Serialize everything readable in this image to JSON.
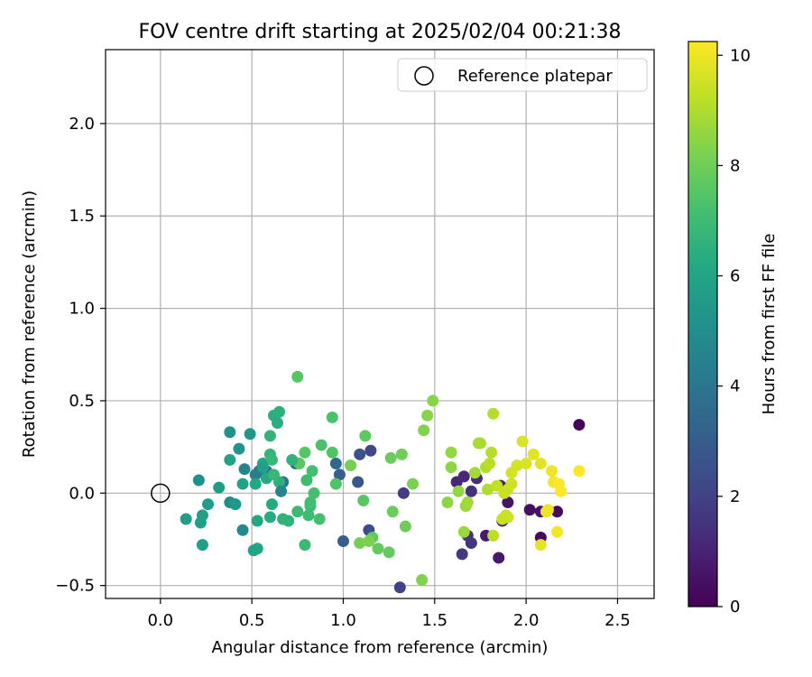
{
  "chart_data": {
    "type": "scatter",
    "title": "FOV centre drift starting at 2025/02/04 00:21:38",
    "xlabel": "Angular distance from reference (arcmin)",
    "ylabel": "Rotation from reference (arcmin)",
    "xlim": [
      -0.3,
      2.7
    ],
    "ylim": [
      -0.57,
      2.4
    ],
    "xticks": [
      "0.0",
      "0.5",
      "1.0",
      "1.5",
      "2.0",
      "2.5"
    ],
    "yticks": [
      "−0.5",
      "0.0",
      "0.5",
      "1.0",
      "1.5",
      "2.0"
    ],
    "grid": true,
    "legend": {
      "placement": "top-right",
      "entries": [
        "Reference platepar"
      ]
    },
    "reference_point": {
      "x": 0.0,
      "y": 0.0,
      "label": "Reference platepar"
    },
    "colorbar": {
      "label": "Hours from first FF file",
      "colormap": "viridis",
      "range": [
        0,
        10.25
      ],
      "ticks": [
        "0",
        "2",
        "4",
        "6",
        "8",
        "10"
      ]
    },
    "series": [
      {
        "points": [
          {
            "x": 2.29,
            "y": 0.37,
            "c": 0.1
          },
          {
            "x": 2.08,
            "y": -0.24,
            "c": 0.2
          },
          {
            "x": 2.17,
            "y": -0.1,
            "c": 0.3
          },
          {
            "x": 2.02,
            "y": -0.09,
            "c": 0.4
          },
          {
            "x": 2.08,
            "y": -0.1,
            "c": 0.5
          },
          {
            "x": 1.9,
            "y": -0.05,
            "c": 0.6
          },
          {
            "x": 1.85,
            "y": -0.35,
            "c": 0.7
          },
          {
            "x": 1.78,
            "y": -0.23,
            "c": 0.8
          },
          {
            "x": 1.87,
            "y": -0.15,
            "c": 0.9
          },
          {
            "x": 1.86,
            "y": 0.04,
            "c": 1.0
          },
          {
            "x": 1.62,
            "y": 0.06,
            "c": 1.1
          },
          {
            "x": 1.66,
            "y": 0.09,
            "c": 1.2
          },
          {
            "x": 1.73,
            "y": 0.08,
            "c": 1.3
          },
          {
            "x": 1.7,
            "y": 0.01,
            "c": 1.4
          },
          {
            "x": 1.68,
            "y": -0.23,
            "c": 1.5
          },
          {
            "x": 1.7,
            "y": -0.27,
            "c": 1.6
          },
          {
            "x": 1.65,
            "y": -0.33,
            "c": 1.7
          },
          {
            "x": 1.33,
            "y": 0.0,
            "c": 1.8
          },
          {
            "x": 1.31,
            "y": -0.51,
            "c": 2.0
          },
          {
            "x": 1.15,
            "y": 0.23,
            "c": 2.2
          },
          {
            "x": 1.14,
            "y": -0.2,
            "c": 2.4
          },
          {
            "x": 1.09,
            "y": 0.21,
            "c": 2.6
          },
          {
            "x": 1.08,
            "y": 0.06,
            "c": 2.8
          },
          {
            "x": 1.0,
            "y": -0.26,
            "c": 3.0
          },
          {
            "x": 0.98,
            "y": 0.1,
            "c": 3.2
          },
          {
            "x": 0.96,
            "y": 0.16,
            "c": 3.4
          },
          {
            "x": 0.74,
            "y": 0.16,
            "c": 3.6
          },
          {
            "x": 0.67,
            "y": 0.06,
            "c": 3.8
          },
          {
            "x": 0.58,
            "y": 0.12,
            "c": 4.0
          },
          {
            "x": 0.54,
            "y": 0.12,
            "c": 4.2
          },
          {
            "x": 0.52,
            "y": 0.1,
            "c": 4.4
          },
          {
            "x": 0.46,
            "y": 0.13,
            "c": 4.6
          },
          {
            "x": 0.45,
            "y": -0.2,
            "c": 4.8
          },
          {
            "x": 0.38,
            "y": -0.05,
            "c": 5.0
          },
          {
            "x": 0.21,
            "y": 0.07,
            "c": 5.1
          },
          {
            "x": 0.38,
            "y": 0.33,
            "c": 5.2
          },
          {
            "x": 0.43,
            "y": 0.24,
            "c": 5.3
          },
          {
            "x": 0.49,
            "y": 0.32,
            "c": 5.4
          },
          {
            "x": 0.41,
            "y": -0.06,
            "c": 5.5
          },
          {
            "x": 0.26,
            "y": -0.06,
            "c": 5.6
          },
          {
            "x": 0.32,
            "y": 0.03,
            "c": 5.6
          },
          {
            "x": 0.14,
            "y": -0.14,
            "c": 5.7
          },
          {
            "x": 0.22,
            "y": -0.16,
            "c": 5.7
          },
          {
            "x": 0.23,
            "y": -0.12,
            "c": 5.8
          },
          {
            "x": 0.23,
            "y": -0.28,
            "c": 5.8
          },
          {
            "x": 0.38,
            "y": 0.18,
            "c": 5.9
          },
          {
            "x": 0.45,
            "y": 0.05,
            "c": 5.9
          },
          {
            "x": 0.51,
            "y": -0.31,
            "c": 6.0
          },
          {
            "x": 0.53,
            "y": -0.3,
            "c": 6.0
          },
          {
            "x": 0.53,
            "y": -0.15,
            "c": 6.1
          },
          {
            "x": 0.52,
            "y": 0.05,
            "c": 6.1
          },
          {
            "x": 0.56,
            "y": 0.16,
            "c": 6.2
          },
          {
            "x": 0.58,
            "y": 0.08,
            "c": 6.2
          },
          {
            "x": 0.6,
            "y": -0.13,
            "c": 6.3
          },
          {
            "x": 0.61,
            "y": -0.06,
            "c": 6.3
          },
          {
            "x": 0.62,
            "y": 0.42,
            "c": 6.4
          },
          {
            "x": 0.64,
            "y": 0.38,
            "c": 6.4
          },
          {
            "x": 0.65,
            "y": 0.44,
            "c": 6.5
          },
          {
            "x": 0.65,
            "y": 0.06,
            "c": 6.5
          },
          {
            "x": 0.67,
            "y": -0.14,
            "c": 6.6
          },
          {
            "x": 0.7,
            "y": -0.15,
            "c": 6.6
          },
          {
            "x": 0.6,
            "y": 0.31,
            "c": 6.7
          },
          {
            "x": 0.6,
            "y": 0.21,
            "c": 6.7
          },
          {
            "x": 0.61,
            "y": 0.18,
            "c": 6.8
          },
          {
            "x": 0.62,
            "y": 0.1,
            "c": 6.8
          },
          {
            "x": 0.75,
            "y": -0.1,
            "c": 6.9
          },
          {
            "x": 0.79,
            "y": -0.28,
            "c": 6.9
          },
          {
            "x": 0.8,
            "y": 0.07,
            "c": 7.0
          },
          {
            "x": 0.81,
            "y": -0.12,
            "c": 7.0
          },
          {
            "x": 0.82,
            "y": -0.07,
            "c": 7.0
          },
          {
            "x": 0.82,
            "y": -0.05,
            "c": 7.1
          },
          {
            "x": 0.83,
            "y": 0.12,
            "c": 7.1
          },
          {
            "x": 0.84,
            "y": 0.0,
            "c": 7.2
          },
          {
            "x": 0.87,
            "y": -0.14,
            "c": 7.2
          },
          {
            "x": 0.88,
            "y": 0.26,
            "c": 7.3
          },
          {
            "x": 0.94,
            "y": 0.41,
            "c": 7.3
          },
          {
            "x": 0.94,
            "y": 0.22,
            "c": 7.4
          },
          {
            "x": 0.96,
            "y": 0.05,
            "c": 7.4
          },
          {
            "x": 0.75,
            "y": 0.63,
            "c": 7.5
          },
          {
            "x": 0.79,
            "y": 0.22,
            "c": 7.5
          },
          {
            "x": 0.76,
            "y": 0.16,
            "c": 7.6
          },
          {
            "x": 1.11,
            "y": -0.04,
            "c": 7.6
          },
          {
            "x": 1.12,
            "y": 0.31,
            "c": 7.7
          },
          {
            "x": 1.16,
            "y": -0.24,
            "c": 7.7
          },
          {
            "x": 1.19,
            "y": -0.3,
            "c": 7.8
          },
          {
            "x": 1.25,
            "y": -0.32,
            "c": 7.8
          },
          {
            "x": 1.26,
            "y": 0.19,
            "c": 7.9
          },
          {
            "x": 1.27,
            "y": -0.1,
            "c": 7.9
          },
          {
            "x": 1.32,
            "y": 0.21,
            "c": 8.0
          },
          {
            "x": 1.34,
            "y": -0.18,
            "c": 8.0
          },
          {
            "x": 1.09,
            "y": -0.27,
            "c": 8.1
          },
          {
            "x": 1.04,
            "y": 0.15,
            "c": 8.1
          },
          {
            "x": 1.14,
            "y": -0.26,
            "c": 8.2
          },
          {
            "x": 1.38,
            "y": 0.05,
            "c": 8.2
          },
          {
            "x": 1.43,
            "y": -0.47,
            "c": 8.3
          },
          {
            "x": 1.44,
            "y": 0.34,
            "c": 8.3
          },
          {
            "x": 1.46,
            "y": 0.42,
            "c": 8.4
          },
          {
            "x": 1.49,
            "y": 0.5,
            "c": 8.4
          },
          {
            "x": 1.57,
            "y": -0.05,
            "c": 8.5
          },
          {
            "x": 1.59,
            "y": 0.14,
            "c": 8.5
          },
          {
            "x": 1.59,
            "y": 0.22,
            "c": 8.6
          },
          {
            "x": 1.63,
            "y": 0.01,
            "c": 8.6
          },
          {
            "x": 1.66,
            "y": -0.21,
            "c": 8.7
          },
          {
            "x": 1.67,
            "y": -0.07,
            "c": 8.7
          },
          {
            "x": 1.68,
            "y": -0.05,
            "c": 8.8
          },
          {
            "x": 1.72,
            "y": 0.11,
            "c": 8.8
          },
          {
            "x": 1.74,
            "y": 0.27,
            "c": 8.9
          },
          {
            "x": 1.75,
            "y": 0.27,
            "c": 8.9
          },
          {
            "x": 1.78,
            "y": 0.14,
            "c": 9.0
          },
          {
            "x": 1.79,
            "y": 0.02,
            "c": 9.0
          },
          {
            "x": 1.81,
            "y": 0.22,
            "c": 9.1
          },
          {
            "x": 1.82,
            "y": 0.43,
            "c": 9.1
          },
          {
            "x": 1.82,
            "y": -0.23,
            "c": 9.2
          },
          {
            "x": 1.8,
            "y": 0.16,
            "c": 9.2
          },
          {
            "x": 1.84,
            "y": 0.04,
            "c": 9.3
          },
          {
            "x": 1.87,
            "y": -0.14,
            "c": 9.4
          },
          {
            "x": 1.89,
            "y": -0.12,
            "c": 9.4
          },
          {
            "x": 1.9,
            "y": 0.02,
            "c": 9.5
          },
          {
            "x": 1.92,
            "y": 0.05,
            "c": 9.5
          },
          {
            "x": 1.92,
            "y": 0.11,
            "c": 9.6
          },
          {
            "x": 1.95,
            "y": 0.15,
            "c": 9.6
          },
          {
            "x": 1.98,
            "y": 0.28,
            "c": 9.7
          },
          {
            "x": 2.0,
            "y": 0.16,
            "c": 9.7
          },
          {
            "x": 2.04,
            "y": 0.21,
            "c": 9.8
          },
          {
            "x": 2.08,
            "y": 0.16,
            "c": 9.8
          },
          {
            "x": 2.08,
            "y": -0.28,
            "c": 9.9
          },
          {
            "x": 2.11,
            "y": -0.1,
            "c": 9.9
          },
          {
            "x": 2.12,
            "y": -0.09,
            "c": 10.0
          },
          {
            "x": 2.14,
            "y": 0.12,
            "c": 10.0
          },
          {
            "x": 2.15,
            "y": 0.06,
            "c": 10.1
          },
          {
            "x": 2.17,
            "y": -0.21,
            "c": 10.1
          },
          {
            "x": 2.18,
            "y": 0.05,
            "c": 10.2
          },
          {
            "x": 2.19,
            "y": 0.01,
            "c": 10.2
          },
          {
            "x": 2.29,
            "y": 0.12,
            "c": 10.25
          },
          {
            "x": 1.9,
            "y": -0.13,
            "c": 9.45
          },
          {
            "x": 1.88,
            "y": 0.0,
            "c": 9.4
          },
          {
            "x": 0.72,
            "y": 0.18,
            "c": 6.6
          },
          {
            "x": 0.66,
            "y": 0.01,
            "c": 4.6
          },
          {
            "x": 0.56,
            "y": 0.14,
            "c": 5.8
          }
        ]
      }
    ]
  }
}
